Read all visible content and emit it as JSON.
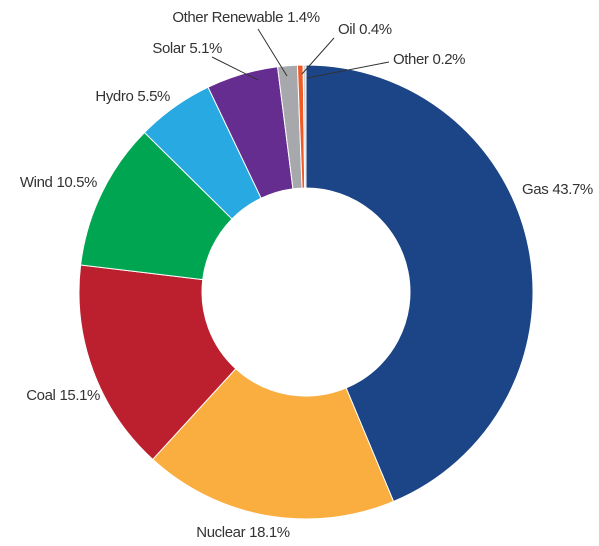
{
  "chart_data": {
    "type": "donut",
    "categories": [
      "Gas",
      "Nuclear",
      "Coal",
      "Wind",
      "Hydro",
      "Solar",
      "Other Renewable",
      "Oil",
      "Other"
    ],
    "values": [
      43.7,
      18.1,
      15.1,
      10.5,
      5.5,
      5.1,
      1.4,
      0.4,
      0.2
    ],
    "value_labels": [
      "43.7%",
      "18.1%",
      "15.1%",
      "10.5%",
      "5.5%",
      "5.1%",
      "1.4%",
      "0.4%",
      "0.2%"
    ],
    "colors": [
      "#1b4586",
      "#fbae40",
      "#bc1f2e",
      "#00a551",
      "#28a9e1",
      "#652d90",
      "#a6a8ab",
      "#ef5a27",
      "#d0d2d3"
    ]
  }
}
